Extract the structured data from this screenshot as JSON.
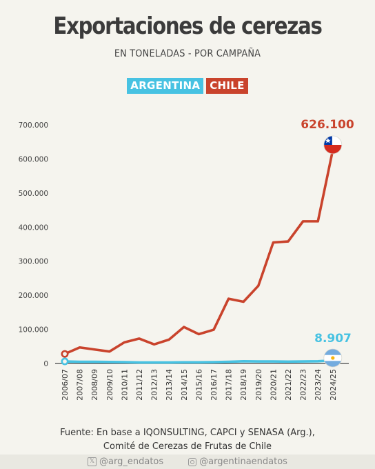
{
  "header": {
    "title": "Exportaciones de cerezas",
    "subtitle": "EN TONELADAS - POR CAMPAÑA"
  },
  "legend": {
    "argentina": "ARGENTINA",
    "chile": "CHILE"
  },
  "colors": {
    "chile": "#c9432c",
    "argentina": "#47c2e2",
    "background": "#f5f4ee"
  },
  "chart_data": {
    "type": "line",
    "title": "Exportaciones de cerezas",
    "subtitle": "EN TONELADAS - POR CAMPAÑA",
    "xlabel": "",
    "ylabel": "",
    "ylim": [
      0,
      700000
    ],
    "yticks": [
      0,
      100000,
      200000,
      300000,
      400000,
      500000,
      600000,
      700000
    ],
    "ytick_labels": [
      "0",
      "100.000",
      "200.000",
      "300.000",
      "400.000",
      "500.000",
      "600.000",
      "700.000"
    ],
    "grid": false,
    "legend_position": "top-center",
    "categories": [
      "2006/07",
      "2007/08",
      "2008/09",
      "2009/10",
      "2010/11",
      "2011/12",
      "2012/13",
      "2013/14",
      "2014/15",
      "2015/16",
      "2016/17",
      "2017/18",
      "2018/19",
      "2019/20",
      "2020/21",
      "2021/22",
      "2022/23",
      "2023/24",
      "2024/25"
    ],
    "series": [
      {
        "name": "CHILE",
        "color": "#c9432c",
        "values": [
          28000,
          47000,
          41000,
          35000,
          62000,
          73000,
          56000,
          70000,
          107000,
          86000,
          99000,
          190000,
          181000,
          228000,
          355000,
          358000,
          417000,
          417000,
          626100
        ],
        "end_label": "626.100"
      },
      {
        "name": "ARGENTINA",
        "color": "#47c2e2",
        "values": [
          6000,
          5000,
          5000,
          4500,
          4000,
          3000,
          3000,
          3000,
          3500,
          3500,
          4000,
          5000,
          6500,
          6000,
          6000,
          5500,
          6000,
          6500,
          8907
        ],
        "end_label": "8.907"
      }
    ]
  },
  "source": {
    "line1": "Fuente: En base a IQONSULTING, CAPCI y SENASA (Arg.),",
    "line2": "Comité de Cerezas de Frutas de Chile"
  },
  "footer": {
    "twitter_icon": "x-logo-icon",
    "twitter": "@arg_endatos",
    "instagram_icon": "instagram-icon",
    "instagram": "@argentinaendatos"
  }
}
